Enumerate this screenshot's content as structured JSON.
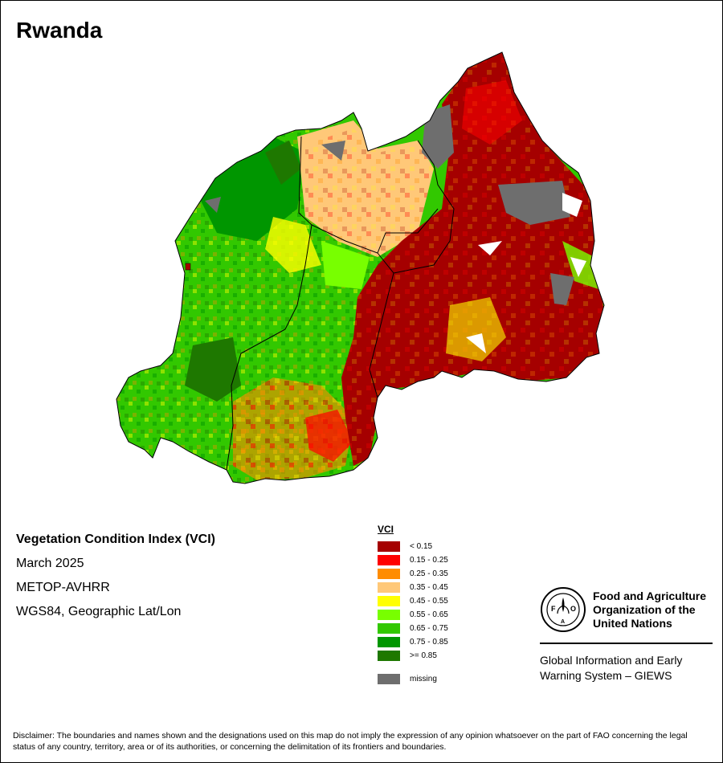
{
  "title": "Rwanda",
  "info": {
    "index_name": "Vegetation Condition Index (VCI)",
    "period": "March 2025",
    "sensor": "METOP-AVHRR",
    "projection": "WGS84, Geographic Lat/Lon"
  },
  "legend": {
    "title": "VCI",
    "classes": [
      {
        "label": "< 0.15",
        "color": "#a50000"
      },
      {
        "label": "0.15 - 0.25",
        "color": "#ff0000"
      },
      {
        "label": "0.25 - 0.35",
        "color": "#ff8c00"
      },
      {
        "label": "0.35 - 0.45",
        "color": "#ffc878"
      },
      {
        "label": "0.45 - 0.55",
        "color": "#ffff00"
      },
      {
        "label": "0.55 - 0.65",
        "color": "#78ff00"
      },
      {
        "label": "0.65 - 0.75",
        "color": "#32c800"
      },
      {
        "label": "0.75 - 0.85",
        "color": "#009600"
      },
      {
        "label": ">= 0.85",
        "color": "#1e7800"
      }
    ],
    "missing": {
      "label": "missing",
      "color": "#6e6e6e"
    }
  },
  "organization": {
    "name": "Food and Agriculture Organization of the United Nations",
    "system": "Global Information and Early Warning System – GIEWS",
    "logo_letters": "FAO",
    "logo_motto": "FIAT PANIS"
  },
  "disclaimer": "Disclaimer: The boundaries and names shown and the designations used on this map do not imply the expression of any opinion whatsoever on the part of FAO concerning the legal status of any country, territory, area or of its authorities, or concerning the delimitation of its frontiers and boundaries."
}
